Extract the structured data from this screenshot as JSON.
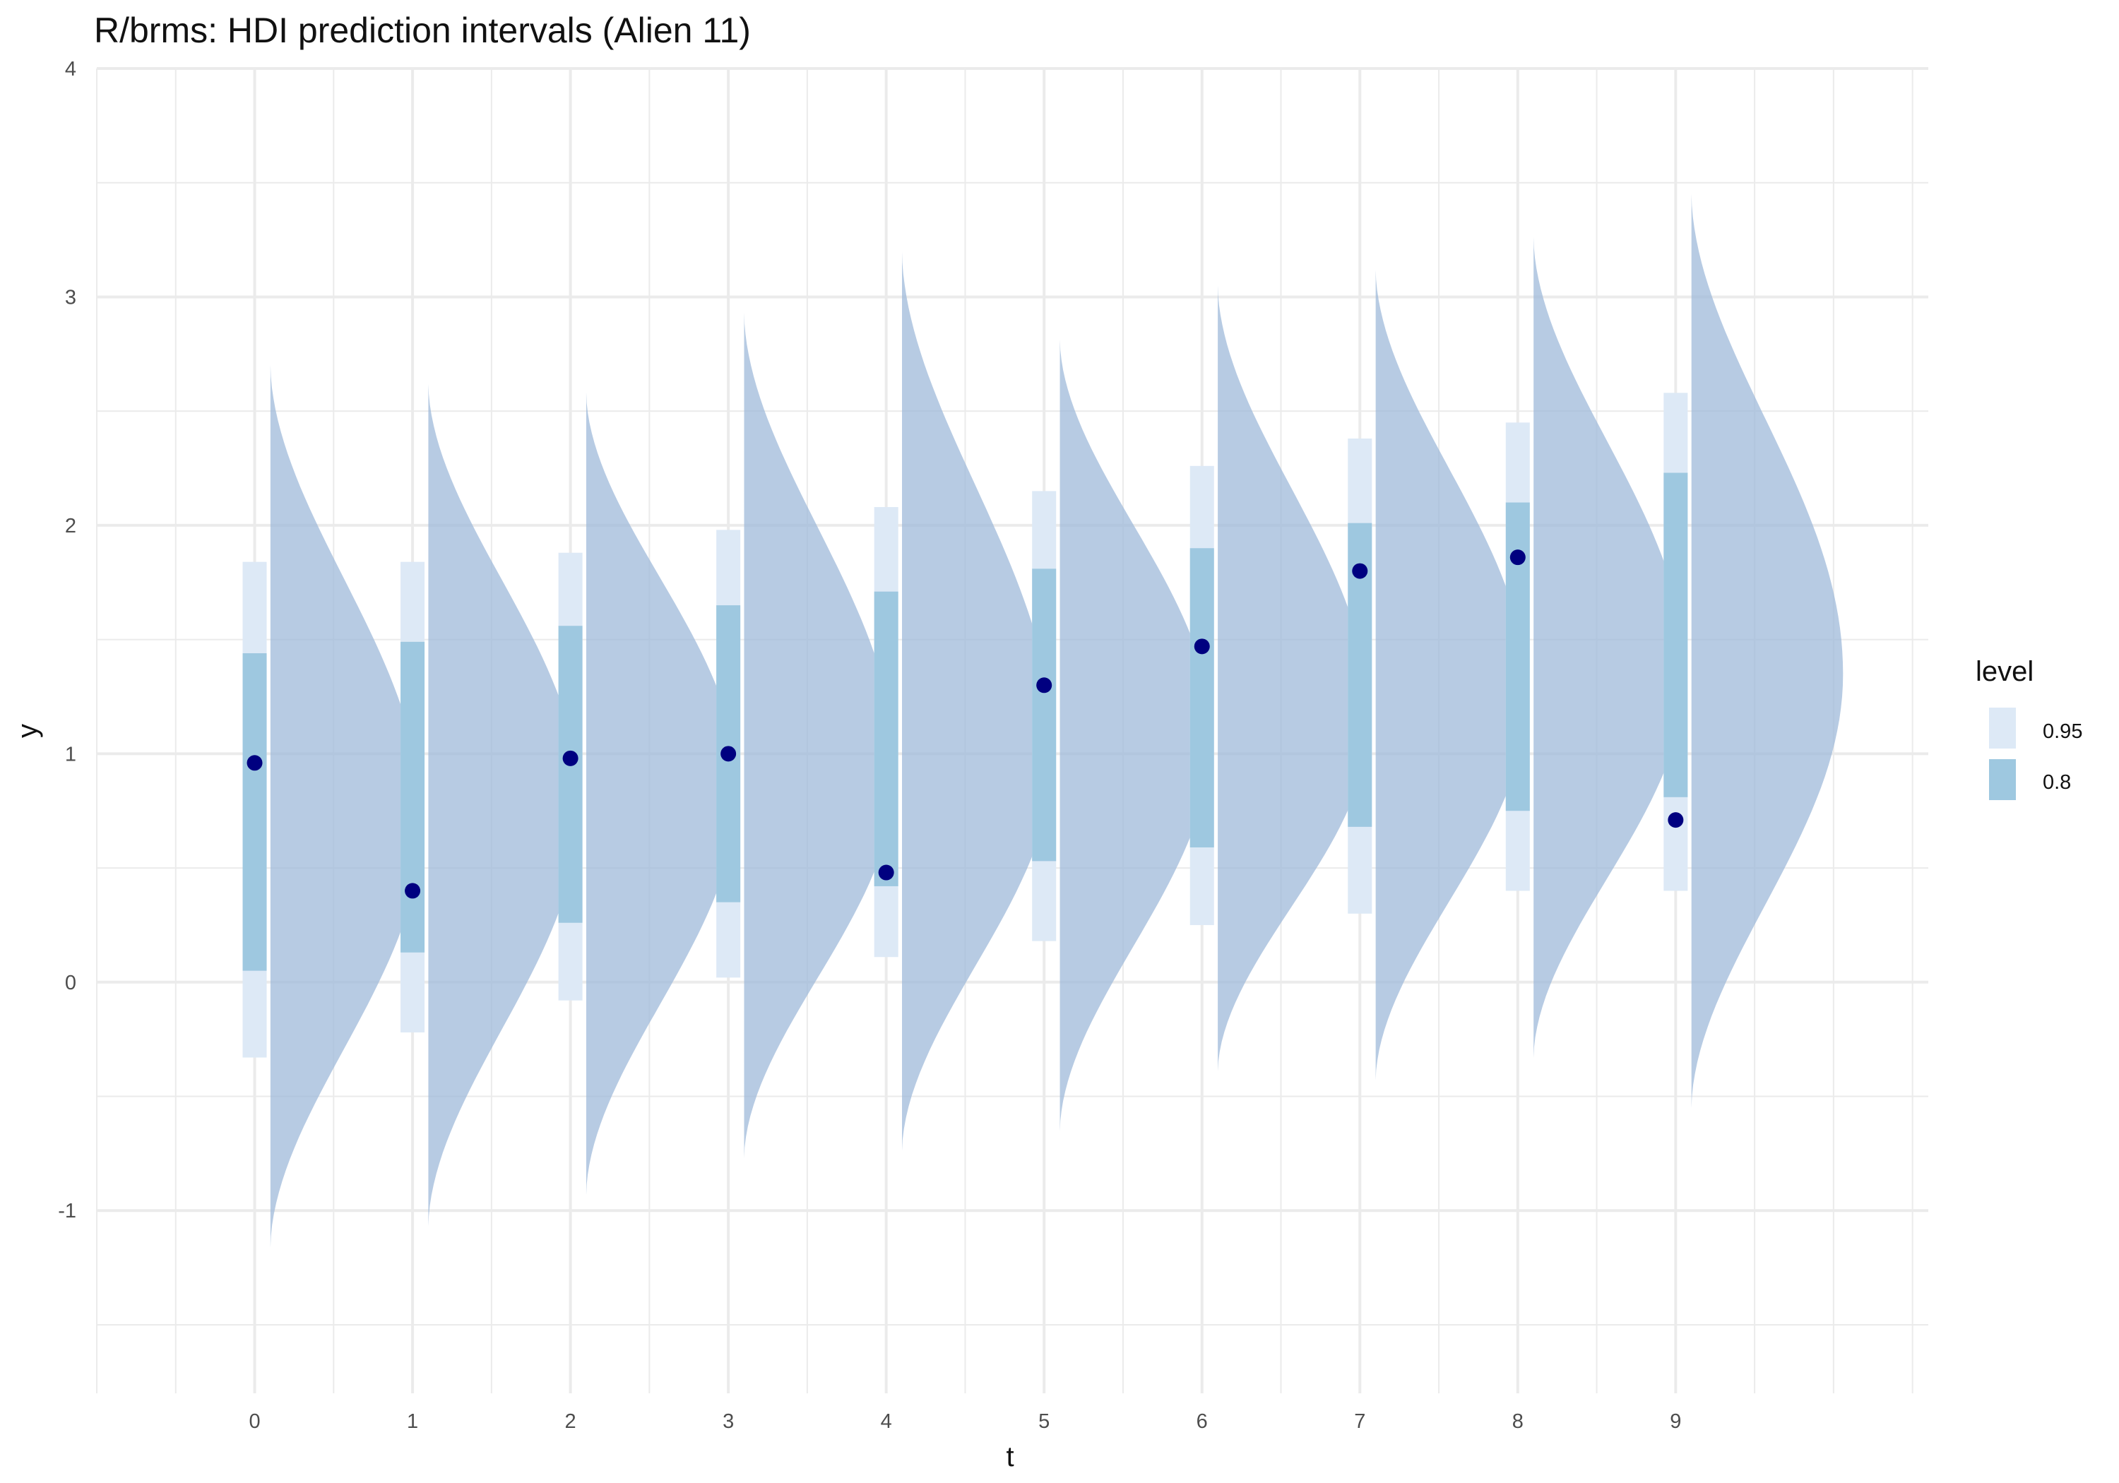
{
  "chart_data": {
    "type": "violin-interval",
    "title": "R/brms: HDI prediction intervals (Alien 11)",
    "xlabel": "t",
    "ylabel": "y",
    "x": [
      0,
      1,
      2,
      3,
      4,
      5,
      6,
      7,
      8,
      9
    ],
    "xlim": [
      -1,
      10.6
    ],
    "ylim": [
      -1.8,
      4
    ],
    "yticks": [
      -1,
      0,
      1,
      2,
      3,
      4
    ],
    "grid": true,
    "legend": {
      "title": "level",
      "position": "right",
      "entries": [
        {
          "label": "0.95",
          "color": "#dde9f6"
        },
        {
          "label": "0.8",
          "color": "#9ec8e0"
        }
      ]
    },
    "observed": [
      0.96,
      0.4,
      0.98,
      1.0,
      0.48,
      1.3,
      1.47,
      1.8,
      1.86,
      0.71
    ],
    "intervals": [
      {
        "x": 0,
        "lo95": -0.33,
        "hi95": 1.84,
        "lo80": 0.05,
        "hi80": 1.44
      },
      {
        "x": 1,
        "lo95": -0.22,
        "hi95": 1.84,
        "lo80": 0.13,
        "hi80": 1.49
      },
      {
        "x": 2,
        "lo95": -0.08,
        "hi95": 1.88,
        "lo80": 0.26,
        "hi80": 1.56
      },
      {
        "x": 3,
        "lo95": 0.02,
        "hi95": 1.98,
        "lo80": 0.35,
        "hi80": 1.65
      },
      {
        "x": 4,
        "lo95": 0.11,
        "hi95": 2.08,
        "lo80": 0.42,
        "hi80": 1.71
      },
      {
        "x": 5,
        "lo95": 0.18,
        "hi95": 2.15,
        "lo80": 0.53,
        "hi80": 1.81
      },
      {
        "x": 6,
        "lo95": 0.25,
        "hi95": 2.26,
        "lo80": 0.59,
        "hi80": 1.9
      },
      {
        "x": 7,
        "lo95": 0.3,
        "hi95": 2.38,
        "lo80": 0.68,
        "hi80": 2.01
      },
      {
        "x": 8,
        "lo95": 0.4,
        "hi95": 2.45,
        "lo80": 0.75,
        "hi80": 2.1
      },
      {
        "x": 9,
        "lo95": 0.4,
        "hi95": 2.58,
        "lo80": 0.81,
        "hi80": 2.23
      }
    ],
    "densities": [
      {
        "x": 0,
        "min": -1.16,
        "max": 2.7,
        "mode": 0.7
      },
      {
        "x": 1,
        "min": -1.07,
        "max": 2.62,
        "mode": 0.78
      },
      {
        "x": 2,
        "min": -0.93,
        "max": 2.58,
        "mode": 0.85
      },
      {
        "x": 3,
        "min": -0.77,
        "max": 2.93,
        "mode": 0.92
      },
      {
        "x": 4,
        "min": -0.74,
        "max": 3.2,
        "mode": 1.0
      },
      {
        "x": 5,
        "min": -0.65,
        "max": 2.81,
        "mode": 1.08
      },
      {
        "x": 6,
        "min": -0.39,
        "max": 3.05,
        "mode": 1.15
      },
      {
        "x": 7,
        "min": -0.43,
        "max": 3.12,
        "mode": 1.25
      },
      {
        "x": 8,
        "min": -0.33,
        "max": 3.26,
        "mode": 1.35
      },
      {
        "x": 9,
        "min": -0.55,
        "max": 3.45,
        "mode": 1.35
      }
    ],
    "colors": {
      "density": "#9fb9d9",
      "interval95": "#dde9f6",
      "interval80": "#9ec8e0",
      "point": "#000080",
      "grid": "#ebebeb"
    }
  }
}
